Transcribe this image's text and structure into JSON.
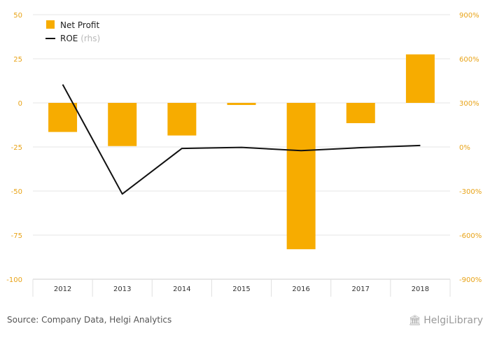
{
  "chart_data": {
    "type": "bar",
    "categories": [
      "2012",
      "2013",
      "2014",
      "2015",
      "2016",
      "2017",
      "2018"
    ],
    "series": [
      {
        "name": "Net Profit",
        "kind": "bar",
        "axis": "left",
        "color": "#f7ac00",
        "values": [
          -16.5,
          -24.5,
          -18.5,
          -1.2,
          -83,
          -11.5,
          27.5
        ]
      },
      {
        "name": "ROE",
        "kind": "line",
        "axis": "right",
        "color": "#111111",
        "values": [
          425,
          -320,
          -10,
          -3,
          -25,
          -5,
          10
        ]
      }
    ],
    "left_axis": {
      "ylim": [
        -100,
        50
      ],
      "ticks": [
        "50",
        "25",
        "0",
        "-25",
        "-50",
        "-75",
        "-100"
      ],
      "tick_values": [
        50,
        25,
        0,
        -25,
        -50,
        -75,
        -100
      ]
    },
    "right_axis": {
      "ylim": [
        -900,
        900
      ],
      "ticks": [
        "900%",
        "600%",
        "300%",
        "0%",
        "-300%",
        "-600%",
        "-900%"
      ],
      "tick_values": [
        900,
        600,
        300,
        0,
        -300,
        -600,
        -900
      ]
    },
    "legend": {
      "placement": "top-left",
      "items": [
        {
          "label": "Net Profit",
          "suffix": ""
        },
        {
          "label": "ROE",
          "suffix": "(rhs)"
        }
      ]
    },
    "grid": true
  },
  "source_text": "Source: Company Data, Helgi Analytics",
  "logo_text": "HelgiLibrary",
  "logo_icon": "library-building-icon",
  "accent_color": "#e8a317"
}
